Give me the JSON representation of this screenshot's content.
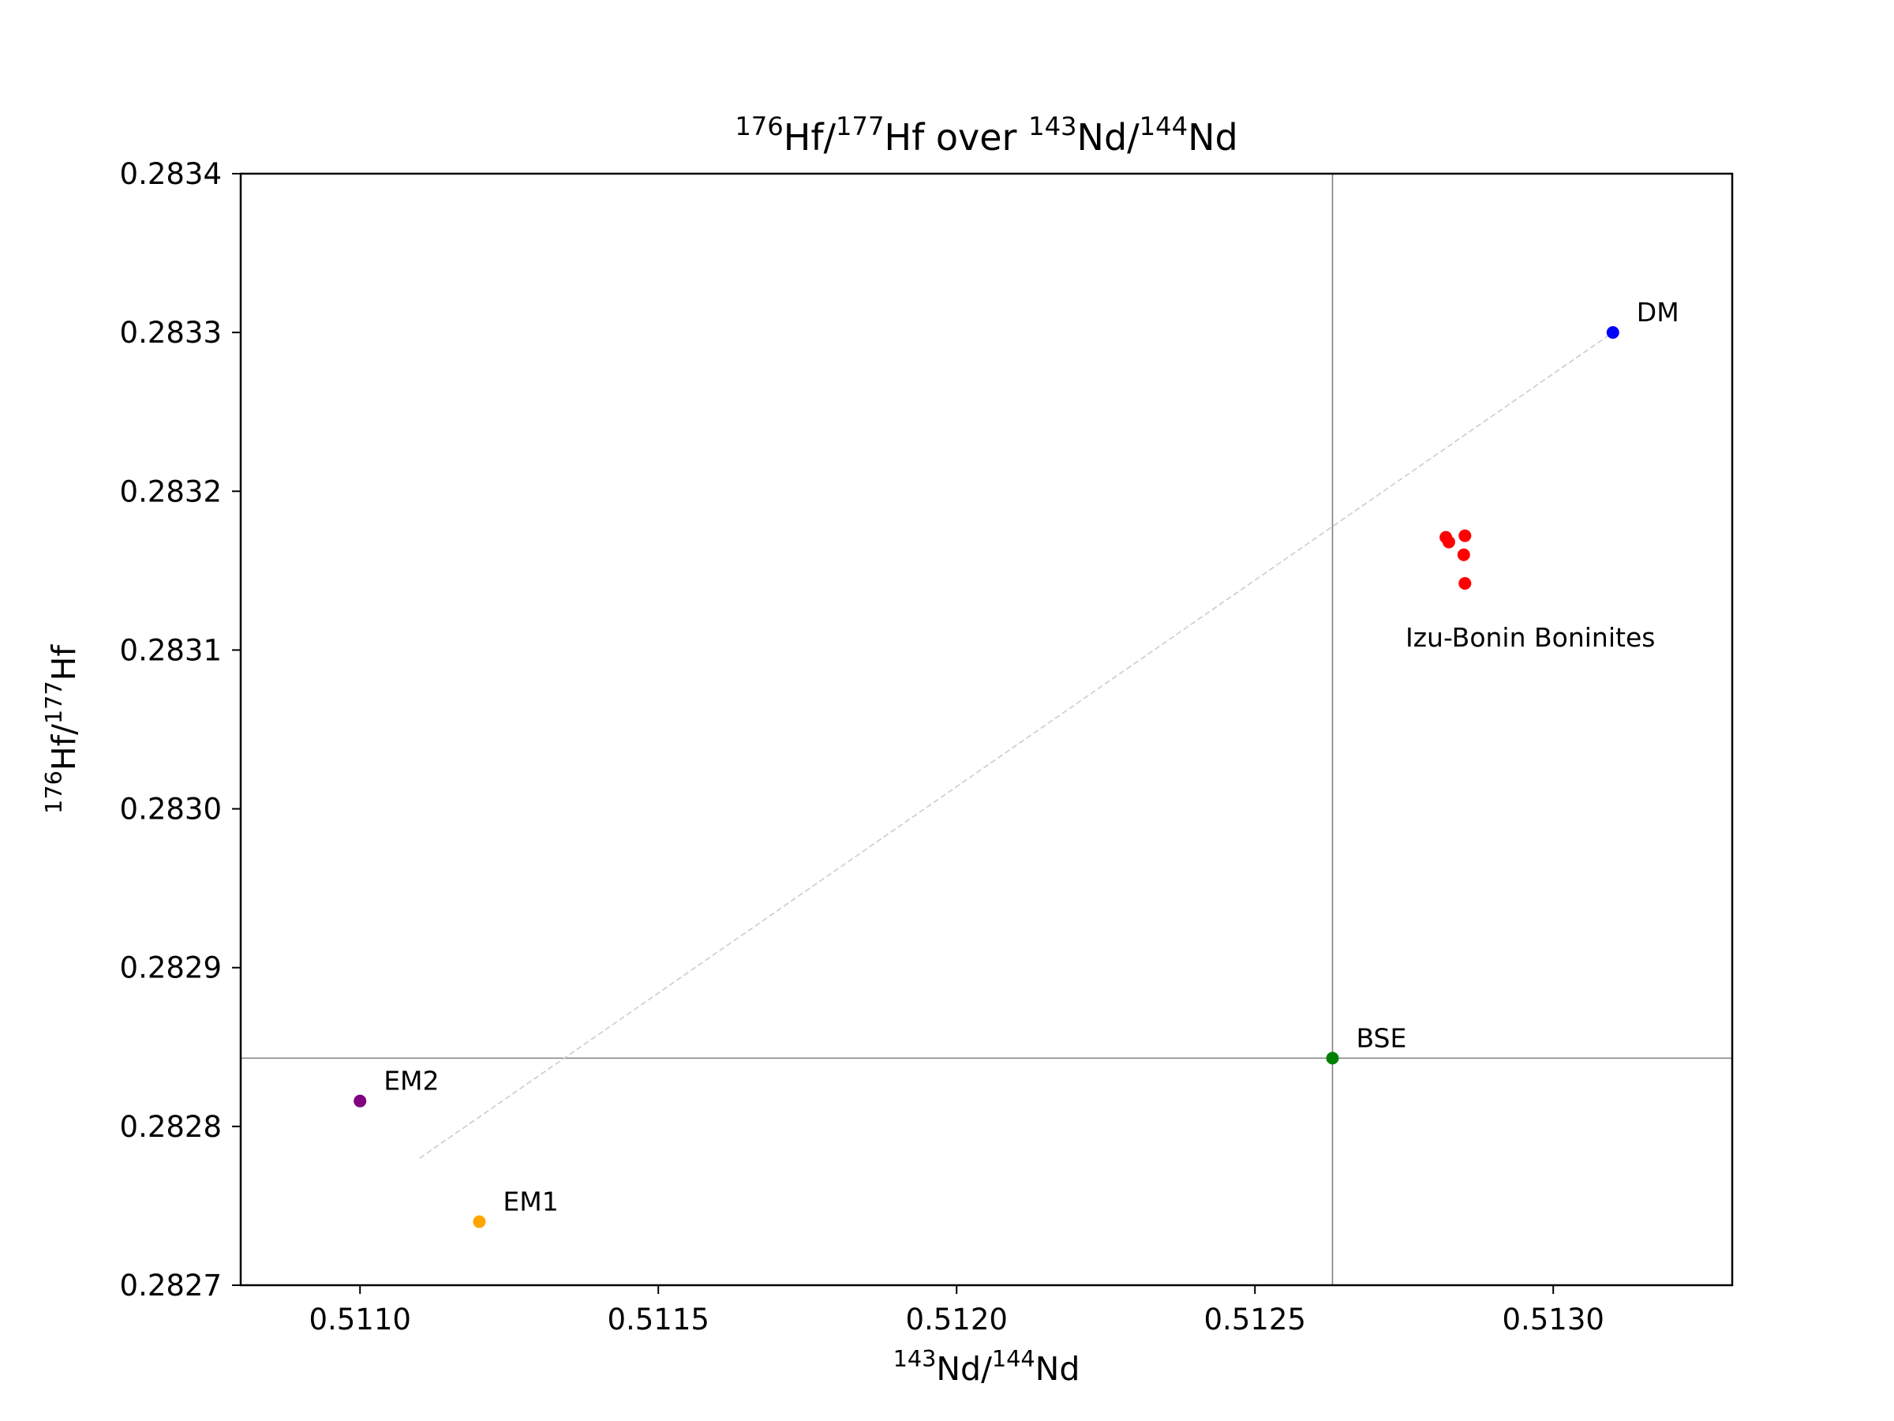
{
  "chart_data": {
    "type": "scatter",
    "title": {
      "parts": [
        {
          "text": "176",
          "sup": true
        },
        {
          "text": "Hf/"
        },
        {
          "text": "177",
          "sup": true
        },
        {
          "text": "Hf over "
        },
        {
          "text": "143",
          "sup": true
        },
        {
          "text": "Nd/"
        },
        {
          "text": "144",
          "sup": true
        },
        {
          "text": "Nd"
        }
      ]
    },
    "xlabel": {
      "parts": [
        {
          "text": "143",
          "sup": true
        },
        {
          "text": "Nd/"
        },
        {
          "text": "144",
          "sup": true
        },
        {
          "text": "Nd"
        }
      ]
    },
    "ylabel": {
      "parts": [
        {
          "text": "176",
          "sup": true
        },
        {
          "text": "Hf/"
        },
        {
          "text": "177",
          "sup": true
        },
        {
          "text": "Hf"
        }
      ]
    },
    "xlim": [
      0.5108,
      0.5133
    ],
    "ylim": [
      0.2827,
      0.2834
    ],
    "xticks": [
      "0.5110",
      "0.5115",
      "0.5120",
      "0.5125",
      "0.5130"
    ],
    "yticks": [
      "0.2827",
      "0.2828",
      "0.2829",
      "0.2830",
      "0.2831",
      "0.2832",
      "0.2833",
      "0.2834"
    ],
    "grid": false,
    "legend": "none",
    "reference_lines": [
      {
        "orientation": "vertical",
        "x": 0.51263,
        "color": "#808080"
      },
      {
        "orientation": "horizontal",
        "y": 0.282843,
        "color": "#808080"
      }
    ],
    "trend_line": {
      "x": [
        0.5111,
        0.5131
      ],
      "y": [
        0.28278,
        0.2833
      ],
      "color": "#cccccc",
      "style": "dashed"
    },
    "end_members": [
      {
        "label": "DM",
        "x": 0.5131,
        "y": 0.2833,
        "color": "#0000ff"
      },
      {
        "label": "BSE",
        "x": 0.51263,
        "y": 0.282843,
        "color": "#008000"
      },
      {
        "label": "EM2",
        "x": 0.511,
        "y": 0.282816,
        "color": "#800080"
      },
      {
        "label": "EM1",
        "x": 0.5112,
        "y": 0.28274,
        "color": "#ffa500"
      }
    ],
    "series": [
      {
        "color": "#ff0000",
        "annotation": "Izu-Bonin Boninites",
        "points": [
          {
            "x": 0.51282,
            "y": 0.283171
          },
          {
            "x": 0.512825,
            "y": 0.283168
          },
          {
            "x": 0.512852,
            "y": 0.283172
          },
          {
            "x": 0.51285,
            "y": 0.28316
          },
          {
            "x": 0.512852,
            "y": 0.283142
          }
        ]
      }
    ]
  }
}
